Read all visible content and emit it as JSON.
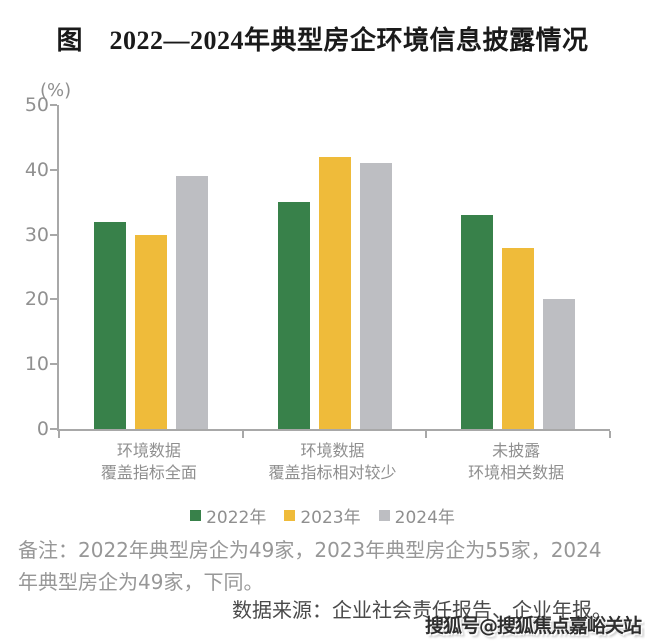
{
  "page": {
    "title": "图　2022—2024年典型房企环境信息披露情况"
  },
  "chart_data": {
    "type": "bar",
    "title": "图　2022—2024年典型房企环境信息披露情况",
    "xlabel": "",
    "ylabel": "(%)",
    "ylim": [
      0,
      50
    ],
    "yticks": [
      50,
      40,
      30,
      20,
      10,
      0
    ],
    "grid": false,
    "legend_position": "bottom",
    "categories": [
      {
        "line1": "环境数据",
        "line2": "覆盖指标全面"
      },
      {
        "line1": "环境数据",
        "line2": "覆盖指标相对较少"
      },
      {
        "line1": "未披露",
        "line2": "环境相关数据"
      }
    ],
    "series": [
      {
        "name": "2022年",
        "color": "#38814a",
        "values": [
          32,
          35,
          33
        ]
      },
      {
        "name": "2023年",
        "color": "#efbb3a",
        "values": [
          30,
          42,
          28
        ]
      },
      {
        "name": "2024年",
        "color": "#bdbec2",
        "values": [
          39,
          41,
          20
        ]
      }
    ]
  },
  "notes": {
    "line1": "备注：2022年典型房企为49家，2023年典型房企为55家，2024",
    "line2": "年典型房企为49家，下同。",
    "source": "数据来源：企业社会责任报告、企业年报。"
  },
  "watermark": "搜狐号@搜狐焦点嘉峪关站",
  "style": {
    "axis_color": "#a8a8a8",
    "tick_label_color": "#909090",
    "category_label_color": "#8f8f8f",
    "note_color": "#979797",
    "source_color": "#4a4a4a",
    "title_color": "#1a1a1a"
  }
}
